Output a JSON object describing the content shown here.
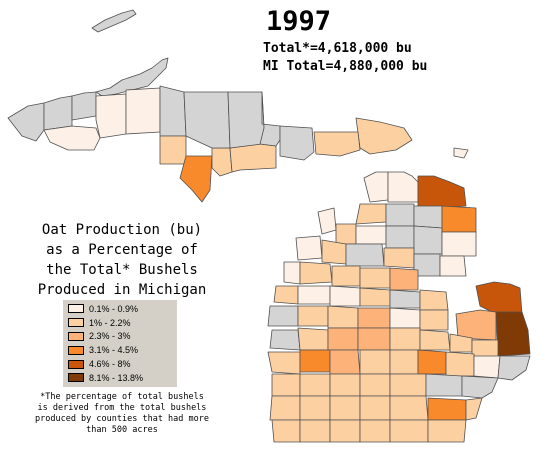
{
  "header": {
    "year": "1997",
    "total_line": "Total*=4,618,000 bu",
    "mi_total_line": "MI Total=4,880,000 bu"
  },
  "map_title": [
    "Oat Production (bu)",
    "as a Percentage of",
    "the Total* Bushels",
    "Produced in Michigan"
  ],
  "legend": {
    "items": [
      {
        "label": "0.1% - 0.9%",
        "color": "#fdf0e6"
      },
      {
        "label": "1% - 2.2%",
        "color": "#fdd0a2"
      },
      {
        "label": "2.3% - 3%",
        "color": "#fdb27a"
      },
      {
        "label": "3.1% - 4.5%",
        "color": "#f98a2c"
      },
      {
        "label": "4.6% - 8%",
        "color": "#c8560a"
      },
      {
        "label": "8.1% - 13.8%",
        "color": "#7f3a06"
      }
    ],
    "no_data_color": "#d4d4d4",
    "background": "#d4d0c8"
  },
  "footnote": [
    "*The percentage of total bushels",
    "is derived from the total bushels",
    "produced by counties that had more",
    "than 500 acres"
  ]
}
